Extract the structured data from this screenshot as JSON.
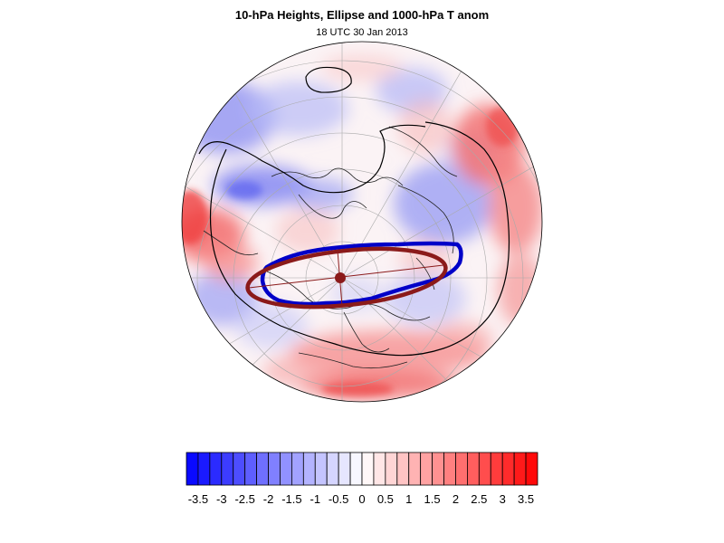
{
  "header": {
    "title": "10-hPa Heights, Ellipse and 1000-hPa T anom",
    "subtitle": "18 UTC 30 Jan 2013"
  },
  "colors": {
    "ellipse_fit": "#8b1a1a",
    "height_contour_highlight": "#0000c8",
    "height_contour": "#000000",
    "graticule": "#aaaaaa"
  },
  "colorbar": {
    "levels": [
      -3.75,
      -3.5,
      -3.25,
      -3,
      -2.75,
      -2.5,
      -2.25,
      -2,
      -1.75,
      -1.5,
      -1.25,
      -1,
      -0.75,
      -0.5,
      -0.25,
      0,
      0.25,
      0.5,
      0.75,
      1,
      1.25,
      1.5,
      1.75,
      2,
      2.25,
      2.5,
      2.75,
      3,
      3.25,
      3.5,
      3.75
    ],
    "tick_labels": [
      "-3.5",
      "-3",
      "-2.5",
      "-2",
      "-1.5",
      "-1",
      "-0.5",
      "0",
      "0.5",
      "1",
      "1.5",
      "2",
      "2.5",
      "3",
      "3.5"
    ],
    "tick_values": [
      -3.5,
      -3,
      -2.5,
      -2,
      -1.5,
      -1,
      -0.5,
      0,
      0.5,
      1,
      1.5,
      2,
      2.5,
      3,
      3.5
    ],
    "min_color": "#0000ff",
    "mid_color": "#ffffff",
    "max_color": "#ff0000"
  }
}
